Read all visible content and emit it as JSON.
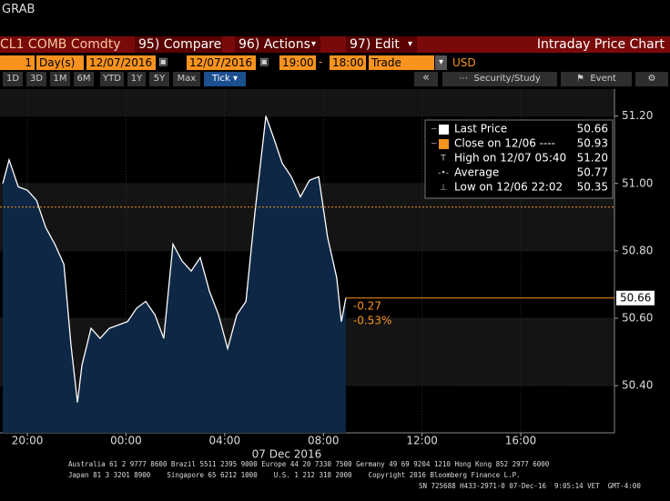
{
  "window_title": "GRAB",
  "toolbar": {
    "security": "CL1 COMB Comdty",
    "menus": [
      "95) Compare",
      "96) Actions",
      "97) Edit"
    ],
    "title": "Intraday Price Chart"
  },
  "settings": {
    "period": "1",
    "unit": "Day(s)",
    "start_date": "12/07/2016",
    "end_date": "12/07/2016",
    "start_time": "19:00",
    "end_time": "18:00",
    "event": "Trade",
    "currency": "USD"
  },
  "range_buttons": [
    "1D",
    "3D",
    "1M",
    "6M",
    "YTD",
    "1Y",
    "5Y",
    "Max"
  ],
  "tick_button": "Tick",
  "tools": [
    "Security/Study",
    "Event"
  ],
  "chart_data": {
    "type": "line",
    "x": [
      0,
      0.26,
      0.63,
      1,
      1.37,
      1.74,
      2.11,
      2.48,
      2.77,
      3.03,
      3.21,
      3.58,
      3.95,
      4.32,
      4.69,
      5.06,
      5.43,
      5.8,
      6.17,
      6.53,
      6.9,
      7.27,
      7.64,
      8.01,
      8.38,
      8.75,
      9.12,
      9.49,
      9.86,
      10.22,
      10.45,
      10.67,
      10.96,
      11.33,
      11.7,
      12.07,
      12.44,
      12.81,
      13.17,
      13.54,
      13.73,
      13.91
    ],
    "series": [
      {
        "name": "Last Price",
        "color": "#ffffff",
        "area_color": "#0e2745",
        "values": [
          51,
          51.07,
          50.99,
          50.98,
          50.95,
          50.87,
          50.82,
          50.76,
          50.52,
          50.35,
          50.46,
          50.57,
          50.54,
          50.57,
          50.58,
          50.59,
          50.63,
          50.65,
          50.61,
          50.54,
          50.82,
          50.77,
          50.74,
          50.78,
          50.68,
          50.61,
          50.51,
          50.61,
          50.65,
          50.91,
          51.06,
          51.2,
          51.14,
          51.06,
          51.02,
          50.96,
          51.01,
          51.02,
          50.84,
          50.72,
          50.59,
          50.66
        ]
      }
    ],
    "xlim": [
      -0.11,
      24.8
    ],
    "xticks": [
      {
        "value": 1,
        "label": "20:00"
      },
      {
        "value": 5,
        "label": "00:00"
      },
      {
        "value": 9,
        "label": "04:00"
      },
      {
        "value": 13,
        "label": "08:00"
      },
      {
        "value": 17,
        "label": "12:00"
      },
      {
        "value": 21,
        "label": "16:00"
      }
    ],
    "x_label": "07 Dec 2016",
    "ylim": [
      50.26,
      51.28
    ],
    "yticks": [
      {
        "value": 50.4,
        "label": "50.40"
      },
      {
        "value": 50.6,
        "label": "50.60"
      },
      {
        "value": 50.8,
        "label": "50.80"
      },
      {
        "value": 51,
        "label": "51.00"
      },
      {
        "value": 51.2,
        "label": "51.20"
      }
    ],
    "grid": true,
    "last_price": {
      "value": 50.66,
      "label": "50.66",
      "color": "#f7931e"
    },
    "close": {
      "label": "Close on 12/06 ----",
      "value": 50.93,
      "color": "#f7931e"
    },
    "change_labels": [
      "-0.27",
      "-0.53%"
    ],
    "stats": [
      {
        "label": "High on 12/07 05:40",
        "value": "51.20"
      },
      {
        "label": "Average",
        "value": "50.77"
      },
      {
        "label": "Low on 12/06 22:02",
        "value": "50.35"
      }
    ],
    "legend": "top-right"
  },
  "footer": [
    "Australia 61 2 9777 8600 Brazil 5511 2395 9000 Europe 44 20 7330 7500 Germany 49 69 9204 1210 Hong Kong 852 2977 6000",
    "Japan 81 3 3201 8900    Singapore 65 6212 1000    U.S. 1 212 318 2000    Copyright 2016 Bloomberg Finance L.P.",
    "SN 725688 H433-2971-0 07-Dec-16  9:05:14 VET  GMT-4:00"
  ]
}
